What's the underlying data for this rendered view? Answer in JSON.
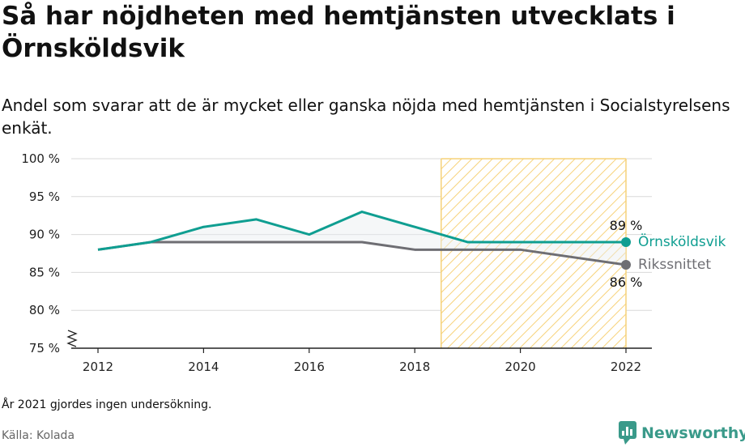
{
  "title": "Så har nöjdheten med hemtjänsten utvecklats i Örnsköldsvik",
  "subtitle": "Andel som svarar att de är mycket eller ganska nöjda med hemtjänsten i Socialstyrelsens enkät.",
  "note": "År 2021 gjordes ingen undersökning.",
  "source": "Källa: Kolada",
  "brand": "Newsworthy",
  "chart_data": {
    "type": "line",
    "x": [
      2012,
      2013,
      2014,
      2015,
      2016,
      2017,
      2018,
      2019,
      2020,
      2022
    ],
    "series": [
      {
        "name": "Örnsköldsvik",
        "color": "#0f9e91",
        "values": [
          88,
          89,
          91,
          92,
          90,
          93,
          91,
          89,
          89,
          89
        ],
        "end_label": "89 %"
      },
      {
        "name": "Rikssnittet",
        "color": "#6e6e73",
        "values": [
          88,
          89,
          89,
          89,
          89,
          89,
          88,
          88,
          88,
          86
        ],
        "end_label": "86 %"
      }
    ],
    "xlim": [
      2012,
      2022
    ],
    "xticks": [
      "2012",
      "2014",
      "2016",
      "2018",
      "2020",
      "2022"
    ],
    "ylim": [
      75,
      100
    ],
    "yticks": [
      "75 %",
      "80 %",
      "85 %",
      "90 %",
      "95 %",
      "100 %"
    ],
    "highlight_range": [
      2018.5,
      2022
    ],
    "highlight_color": "#f5c242",
    "axis_break": true,
    "grid": true
  }
}
